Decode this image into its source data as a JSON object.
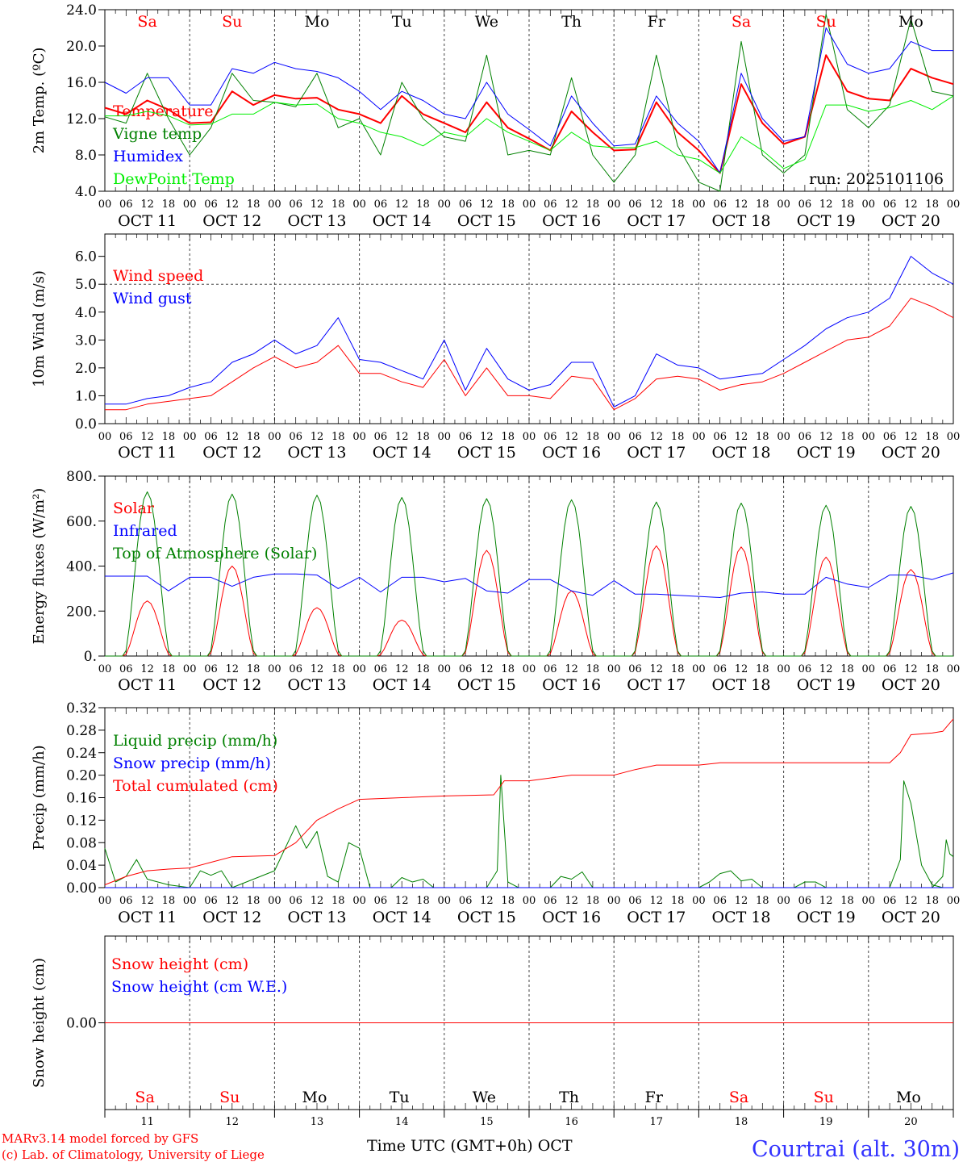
{
  "day_labels": [
    {
      "label": "Sa",
      "weekend": true
    },
    {
      "label": "Su",
      "weekend": true
    },
    {
      "label": "Mo",
      "weekend": false
    },
    {
      "label": "Tu",
      "weekend": false
    },
    {
      "label": "We",
      "weekend": false
    },
    {
      "label": "Th",
      "weekend": false
    },
    {
      "label": "Fr",
      "weekend": false
    },
    {
      "label": "Sa",
      "weekend": true
    },
    {
      "label": "Su",
      "weekend": true
    },
    {
      "label": "Mo",
      "weekend": false
    }
  ],
  "hour_ticks": [
    "00",
    "06",
    "12",
    "18"
  ],
  "date_labels": [
    "OCT 11",
    "OCT 12",
    "OCT 13",
    "OCT 14",
    "OCT 15",
    "OCT 16",
    "OCT 17",
    "OCT 18",
    "OCT 19",
    "OCT 20"
  ],
  "day_numbers": [
    "11",
    "12",
    "13",
    "14",
    "15",
    "16",
    "17",
    "18",
    "19",
    "20"
  ],
  "colors": {
    "weekend": "#ff0000",
    "red": "#ff0000",
    "blue": "#0000ff",
    "green": "#008000",
    "lime": "#00ee00",
    "axis": "#000000"
  },
  "footer": {
    "model": "MARv3.14 model forced by GFS",
    "credit": "(c) Lab. of Climatology, University of Liege",
    "xlabel": "Time UTC (GMT+0h) OCT",
    "location": "Courtrai (alt. 30m)"
  },
  "chart_data": [
    {
      "type": "line",
      "id": "temp",
      "ylabel": "2m Temp. (ºC)",
      "ylim": [
        4,
        24
      ],
      "yticks": [
        "4.0",
        "8.0",
        "12.0",
        "16.0",
        "20.0",
        "24.0"
      ],
      "ytick_values": [
        4,
        8,
        12,
        16,
        20,
        24
      ],
      "annotation": "run: 2025101106",
      "x_step_hours": 6,
      "series": [
        {
          "name": "Temperature",
          "color": "#ff0000",
          "width": 2,
          "values": [
            13.2,
            12.5,
            14.0,
            13.0,
            11.5,
            11.6,
            15.0,
            13.5,
            14.6,
            14.2,
            14.3,
            13.0,
            12.5,
            11.5,
            14.5,
            12.5,
            11.5,
            10.5,
            13.8,
            11.0,
            9.8,
            8.5,
            12.8,
            10.5,
            8.5,
            8.6,
            13.8,
            10.5,
            8.5,
            6.0,
            15.8,
            11.5,
            9.2,
            10.0,
            19.0,
            15.0,
            14.2,
            14.0,
            17.5,
            16.5,
            15.8
          ]
        },
        {
          "name": "Vigne temp",
          "color": "#008000",
          "width": 1,
          "values": [
            12.2,
            11.5,
            17.0,
            12.0,
            8.0,
            11.0,
            17.0,
            14.0,
            13.8,
            13.3,
            17.0,
            11.0,
            12.0,
            8.0,
            16.0,
            12.0,
            10.0,
            9.5,
            19.0,
            8.0,
            8.5,
            8.0,
            16.5,
            8.0,
            5.0,
            8.0,
            19.0,
            9.0,
            5.0,
            4.0,
            20.5,
            8.0,
            6.0,
            8.0,
            23.5,
            13.0,
            11.0,
            13.5,
            23.0,
            15.0,
            14.5
          ]
        },
        {
          "name": "Humidex",
          "color": "#0000ff",
          "width": 1,
          "values": [
            16.0,
            14.8,
            16.5,
            16.5,
            13.5,
            13.5,
            17.5,
            17.0,
            18.2,
            17.5,
            17.2,
            16.5,
            15.0,
            13.0,
            15.0,
            14.0,
            12.5,
            12.0,
            16.0,
            12.5,
            10.8,
            9.0,
            14.5,
            11.5,
            9.0,
            9.2,
            14.5,
            11.5,
            9.5,
            6.0,
            17.0,
            12.0,
            9.5,
            10.0,
            22.0,
            18.0,
            17.0,
            17.5,
            20.5,
            19.5,
            19.5
          ]
        },
        {
          "name": "DewPoint Temp",
          "color": "#00ee00",
          "width": 1,
          "values": [
            12.3,
            12.3,
            12.8,
            12.3,
            11.3,
            11.4,
            12.5,
            12.5,
            13.8,
            13.5,
            13.6,
            12.0,
            11.5,
            10.5,
            10.0,
            9.0,
            10.5,
            10.0,
            12.0,
            10.5,
            9.5,
            8.5,
            10.5,
            9.0,
            8.8,
            8.8,
            9.5,
            8.0,
            7.5,
            6.0,
            10.0,
            8.5,
            6.5,
            7.5,
            13.5,
            13.5,
            12.8,
            13.2,
            14.0,
            13.0,
            14.5
          ]
        }
      ]
    },
    {
      "type": "line",
      "id": "wind",
      "ylabel": "10m Wind (m/s)",
      "ylim": [
        0,
        6.8
      ],
      "yticks": [
        "0.0",
        "1.0",
        "2.0",
        "3.0",
        "4.0",
        "5.0",
        "6.0"
      ],
      "ytick_values": [
        0,
        1,
        2,
        3,
        4,
        5,
        6
      ],
      "ref_line": 5.0,
      "x_step_hours": 6,
      "series": [
        {
          "name": "Wind speed",
          "color": "#ff0000",
          "width": 1,
          "values": [
            0.5,
            0.5,
            0.7,
            0.8,
            0.9,
            1.0,
            1.5,
            2.0,
            2.4,
            2.0,
            2.2,
            2.8,
            1.8,
            1.8,
            1.5,
            1.3,
            2.3,
            1.0,
            2.0,
            1.0,
            1.0,
            0.9,
            1.7,
            1.6,
            0.5,
            0.9,
            1.6,
            1.7,
            1.6,
            1.2,
            1.4,
            1.5,
            1.8,
            2.2,
            2.6,
            3.0,
            3.1,
            3.5,
            4.5,
            4.2,
            3.8
          ]
        },
        {
          "name": "Wind gust",
          "color": "#0000ff",
          "width": 1,
          "values": [
            0.7,
            0.7,
            0.9,
            1.0,
            1.3,
            1.5,
            2.2,
            2.5,
            3.0,
            2.5,
            2.8,
            3.8,
            2.3,
            2.2,
            1.9,
            1.6,
            3.0,
            1.2,
            2.7,
            1.6,
            1.2,
            1.4,
            2.2,
            2.2,
            0.6,
            1.0,
            2.5,
            2.1,
            2.0,
            1.6,
            1.7,
            1.8,
            2.3,
            2.8,
            3.4,
            3.8,
            4.0,
            4.5,
            6.0,
            5.4,
            5.0
          ]
        }
      ]
    },
    {
      "type": "line",
      "id": "energy",
      "ylabel": "Energy fluxes (W/m²)",
      "ylim": [
        0,
        800
      ],
      "yticks": [
        "0.",
        "200.",
        "400.",
        "600.",
        "800."
      ],
      "ytick_values": [
        0,
        200,
        400,
        600,
        800
      ],
      "series": [
        {
          "name": "Solar",
          "color": "#ff0000",
          "width": 1,
          "daily_peak": [
            245,
            400,
            215,
            160,
            470,
            290,
            490,
            485,
            440,
            385
          ]
        },
        {
          "name": "Infrared",
          "color": "#0000ff",
          "width": 1,
          "x_step_hours": 6,
          "values": [
            355,
            355,
            355,
            290,
            350,
            350,
            310,
            350,
            365,
            365,
            360,
            300,
            350,
            285,
            350,
            350,
            330,
            345,
            290,
            280,
            340,
            340,
            290,
            270,
            335,
            275,
            275,
            270,
            265,
            260,
            280,
            285,
            275,
            275,
            350,
            320,
            305,
            360,
            360,
            340,
            370
          ]
        },
        {
          "name": "Top of Atmosphere (Solar)",
          "color": "#008000",
          "width": 1,
          "daily_peak": [
            730,
            720,
            715,
            705,
            700,
            695,
            685,
            680,
            670,
            665
          ]
        }
      ]
    },
    {
      "type": "line",
      "id": "precip",
      "ylabel": "Precip (mm/h)",
      "ylim": [
        0,
        0.32
      ],
      "yticks": [
        "0.00",
        "0.04",
        "0.08",
        "0.12",
        "0.16",
        "0.20",
        "0.24",
        "0.28",
        "0.32"
      ],
      "ytick_values": [
        0,
        0.04,
        0.08,
        0.12,
        0.16,
        0.2,
        0.24,
        0.28,
        0.32
      ],
      "series": [
        {
          "name": "Liquid precip (mm/h)",
          "color": "#008000",
          "width": 1,
          "points": [
            [
              0,
              0.07
            ],
            [
              3,
              0.01
            ],
            [
              6,
              0.02
            ],
            [
              9,
              0.05
            ],
            [
              12,
              0.015
            ],
            [
              18,
              0.005
            ],
            [
              24,
              0
            ],
            [
              27,
              0.03
            ],
            [
              30,
              0.022
            ],
            [
              33,
              0.03
            ],
            [
              36,
              0
            ],
            [
              48,
              0.03
            ],
            [
              54,
              0.11
            ],
            [
              57,
              0.07
            ],
            [
              60,
              0.1
            ],
            [
              63,
              0.02
            ],
            [
              66,
              0.01
            ],
            [
              69,
              0.08
            ],
            [
              72,
              0.07
            ],
            [
              75,
              0
            ],
            [
              81,
              0
            ],
            [
              84,
              0.018
            ],
            [
              87,
              0.01
            ],
            [
              90,
              0.015
            ],
            [
              93,
              0
            ],
            [
              108,
              0
            ],
            [
              111,
              0.03
            ],
            [
              112,
              0.2
            ],
            [
              114,
              0.01
            ],
            [
              117,
              0
            ],
            [
              126,
              0
            ],
            [
              129,
              0.02
            ],
            [
              132,
              0.015
            ],
            [
              135,
              0.028
            ],
            [
              138,
              0
            ],
            [
              168,
              0
            ],
            [
              171,
              0.01
            ],
            [
              174,
              0.025
            ],
            [
              177,
              0.03
            ],
            [
              180,
              0.012
            ],
            [
              183,
              0.015
            ],
            [
              186,
              0
            ],
            [
              195,
              0
            ],
            [
              198,
              0.01
            ],
            [
              201,
              0.01
            ],
            [
              204,
              0
            ],
            [
              222,
              0
            ],
            [
              225,
              0.05
            ],
            [
              226,
              0.19
            ],
            [
              228,
              0.15
            ],
            [
              231,
              0.04
            ],
            [
              234,
              0.005
            ],
            [
              237,
              0
            ],
            [
              234,
              0
            ],
            [
              237,
              0.02
            ],
            [
              238,
              0.085
            ],
            [
              239,
              0.06
            ],
            [
              240,
              0.055
            ]
          ]
        },
        {
          "name": "Snow precip (mm/h)",
          "color": "#0000ff",
          "width": 1,
          "points": [
            [
              0,
              0
            ],
            [
              240,
              0
            ]
          ]
        },
        {
          "name": "Total cumulated (cm)",
          "color": "#ff0000",
          "width": 1,
          "points": [
            [
              0,
              0.005
            ],
            [
              6,
              0.02
            ],
            [
              12,
              0.03
            ],
            [
              18,
              0.033
            ],
            [
              24,
              0.035
            ],
            [
              30,
              0.045
            ],
            [
              36,
              0.055
            ],
            [
              48,
              0.057
            ],
            [
              54,
              0.08
            ],
            [
              60,
              0.12
            ],
            [
              66,
              0.14
            ],
            [
              72,
              0.157
            ],
            [
              84,
              0.16
            ],
            [
              96,
              0.163
            ],
            [
              110,
              0.165
            ],
            [
              113,
              0.19
            ],
            [
              120,
              0.19
            ],
            [
              132,
              0.2
            ],
            [
              144,
              0.2
            ],
            [
              150,
              0.21
            ],
            [
              156,
              0.218
            ],
            [
              168,
              0.218
            ],
            [
              174,
              0.222
            ],
            [
              222,
              0.222
            ],
            [
              225,
              0.24
            ],
            [
              228,
              0.272
            ],
            [
              234,
              0.275
            ],
            [
              237,
              0.278
            ],
            [
              240,
              0.3
            ]
          ]
        }
      ]
    },
    {
      "type": "line",
      "id": "snow",
      "ylabel": "Snow height (cm)",
      "ylim": [
        -1,
        1
      ],
      "yticks": [
        "0.00"
      ],
      "ytick_values": [
        0
      ],
      "series": [
        {
          "name": "Snow height (cm)",
          "color": "#ff0000",
          "width": 1,
          "points": [
            [
              0,
              0
            ],
            [
              240,
              0
            ]
          ]
        },
        {
          "name": "Snow height (cm W.E.)",
          "color": "#0000ff",
          "width": 1,
          "points": []
        }
      ]
    }
  ]
}
